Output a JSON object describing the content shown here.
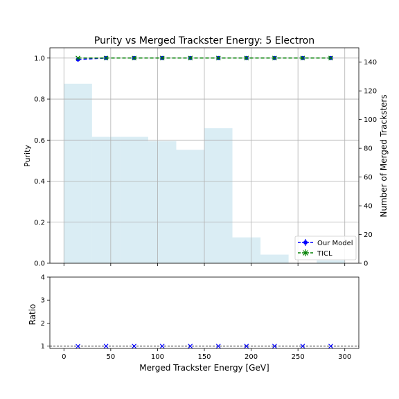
{
  "chart_data": [
    {
      "type": "line",
      "title": "Purity vs Merged Trackster Energy: 5 Electron",
      "ylabel": "Purity",
      "y2label": "Number of Merged Tracksters",
      "xlim": [
        -15,
        315
      ],
      "ylim": [
        0,
        1.05
      ],
      "y2lim": [
        0,
        150
      ],
      "xticks": [
        0,
        50,
        100,
        150,
        200,
        250,
        300
      ],
      "yticks": [
        0.0,
        0.2,
        0.4,
        0.6,
        0.8,
        1.0
      ],
      "y2ticks": [
        0,
        20,
        40,
        60,
        80,
        100,
        120,
        140
      ],
      "grid": true,
      "legend_position": "lower-right",
      "x": [
        15,
        45,
        75,
        105,
        135,
        165,
        195,
        225,
        255,
        285
      ],
      "series": [
        {
          "name": "Our Model",
          "color": "#0000ff",
          "values": [
            0.993,
            1.0,
            1.0,
            1.0,
            1.0,
            1.0,
            1.0,
            1.0,
            1.0,
            1.0
          ]
        },
        {
          "name": "TICL",
          "color": "#008000",
          "values": [
            1.0,
            1.0,
            1.0,
            1.0,
            1.0,
            1.0,
            1.0,
            1.0,
            1.0,
            1.0
          ]
        }
      ],
      "histogram": {
        "color": "#add8e6",
        "bin_edges": [
          0,
          30,
          60,
          90,
          120,
          150,
          180,
          210,
          240,
          270,
          300
        ],
        "counts": [
          125,
          88,
          88,
          85,
          79,
          94,
          18,
          6,
          0,
          2
        ]
      }
    },
    {
      "type": "scatter",
      "ylabel": "Ratio",
      "xlabel": "Merged Trackster Energy [GeV]",
      "xlim": [
        -15,
        315
      ],
      "ylim": [
        0.9,
        4
      ],
      "yticks": [
        1,
        2,
        3,
        4
      ],
      "xticks": [
        0,
        50,
        100,
        150,
        200,
        250,
        300
      ],
      "reference_line": 1,
      "marker_color": "#0000ff",
      "x": [
        15,
        45,
        75,
        105,
        135,
        165,
        195,
        225,
        255,
        285
      ],
      "values": [
        0.993,
        1.0,
        1.0,
        1.0,
        1.0,
        1.0,
        1.0,
        1.0,
        1.0,
        1.0
      ]
    }
  ]
}
